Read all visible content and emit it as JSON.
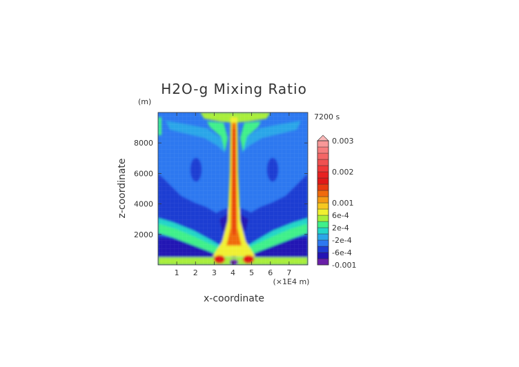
{
  "chart_data": {
    "type": "heatmap",
    "title": "H2O-g Mixing Ratio",
    "time_label": "7200 s",
    "xlabel": "x-coordinate",
    "ylabel": "z-coordinate",
    "x_unit": "(×1E4 m)",
    "y_unit": "(m)",
    "xlim": [
      0,
      8
    ],
    "ylim": [
      0,
      10000
    ],
    "x_ticks": [
      1,
      2,
      3,
      4,
      5,
      6,
      7
    ],
    "y_ticks": [
      2000,
      4000,
      6000,
      8000
    ],
    "colorbar": {
      "levels": [
        -0.001,
        -0.0008,
        -0.0006,
        -0.0004,
        -0.0002,
        0,
        0.0002,
        0.0004,
        0.0006,
        0.0008,
        0.001,
        0.0012,
        0.0014,
        0.0016,
        0.0018,
        0.002,
        0.0022,
        0.0024,
        0.0026,
        0.0028,
        0.003
      ],
      "labels": [
        {
          "value": 0.003,
          "text": "0.003"
        },
        {
          "value": 0.002,
          "text": "0.002"
        },
        {
          "value": 0.001,
          "text": "0.001"
        },
        {
          "value": 0.0006,
          "text": "6e-4"
        },
        {
          "value": 0.0002,
          "text": "2e-4"
        },
        {
          "value": -0.0002,
          "text": "-2e-4"
        },
        {
          "value": -0.0006,
          "text": "-6e-4"
        },
        {
          "value": -0.001,
          "text": "-0.001"
        }
      ],
      "colors": [
        "#6a1fa8",
        "#2414b4",
        "#1e3cd2",
        "#2d78f0",
        "#2aa6e8",
        "#23d6c8",
        "#3ff08a",
        "#a8ee3a",
        "#f0f030",
        "#f6c820",
        "#f59a14",
        "#f06a0c",
        "#e83a10",
        "#e01818",
        "#e82020",
        "#f03838",
        "#f05050",
        "#f46666",
        "#f67e7e",
        "#f89898",
        "#fab8b8"
      ],
      "extend": "max"
    }
  }
}
